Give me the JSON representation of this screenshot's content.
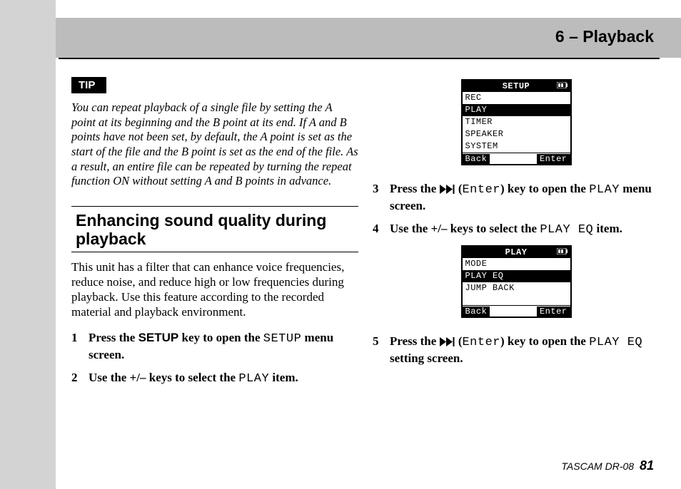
{
  "chapter": "6 – Playback",
  "tip": {
    "badge": "TIP",
    "body": "You can repeat playback of a single file by setting the A point at its beginning and the B point at its end. If A and B points have not been set, by default, the A point is set as the start of the file and the B point is set as the end of the file. As a result, an entire file can be repeated by turning the repeat function ON without setting A and B points in advance."
  },
  "section_title": "Enhancing sound quality during playback",
  "body_paragraph": "This unit has a filter that can enhance voice frequencies, reduce noise, and reduce high or low frequencies during playback. Use this feature according to the recorded material and playback environment.",
  "steps_left": [
    {
      "num": "1",
      "prefix": "Press the ",
      "key_sans": "SETUP",
      "mid": " key to open the ",
      "mono1": "SETUP",
      "suffix": " menu screen."
    },
    {
      "num": "2",
      "prefix": "Use the +/– keys to select the ",
      "mono1": "PLAY",
      "suffix": " item."
    }
  ],
  "steps_right": [
    {
      "num": "3",
      "prefix": "Press the ",
      "has_play_icon": true,
      "mid1": " (",
      "mono1": "Enter",
      "mid2": ") key to open the ",
      "mono2": "PLAY",
      "suffix": " menu screen."
    },
    {
      "num": "4",
      "prefix": "Use the +/– keys to select the ",
      "mono1": "PLAY EQ",
      "suffix": " item."
    },
    {
      "num": "5",
      "prefix": "Press the ",
      "has_play_icon": true,
      "mid1": " (",
      "mono1": "Enter",
      "mid2": ") key to open the ",
      "mono2": "PLAY EQ",
      "suffix": " setting screen."
    }
  ],
  "lcd1": {
    "title": "SETUP",
    "rows": [
      {
        "label": "REC",
        "selected": false
      },
      {
        "label": "PLAY",
        "selected": true
      },
      {
        "label": "TIMER",
        "selected": false
      },
      {
        "label": "SPEAKER",
        "selected": false
      },
      {
        "label": "SYSTEM",
        "selected": false
      }
    ],
    "foot_left": "Back",
    "foot_right": "Enter"
  },
  "lcd2": {
    "title": "PLAY",
    "rows": [
      {
        "label": "MODE",
        "selected": false
      },
      {
        "label": "PLAY EQ",
        "selected": true
      },
      {
        "label": "JUMP BACK",
        "selected": false
      }
    ],
    "foot_left": "Back",
    "foot_right": "Enter"
  },
  "footer_product": "TASCAM  DR-08",
  "footer_page": "81",
  "colors": {
    "page_bg": "#ffffff",
    "outer_bg": "#d3d3d3",
    "header_bar": "#bcbcbc",
    "text": "#000000"
  }
}
